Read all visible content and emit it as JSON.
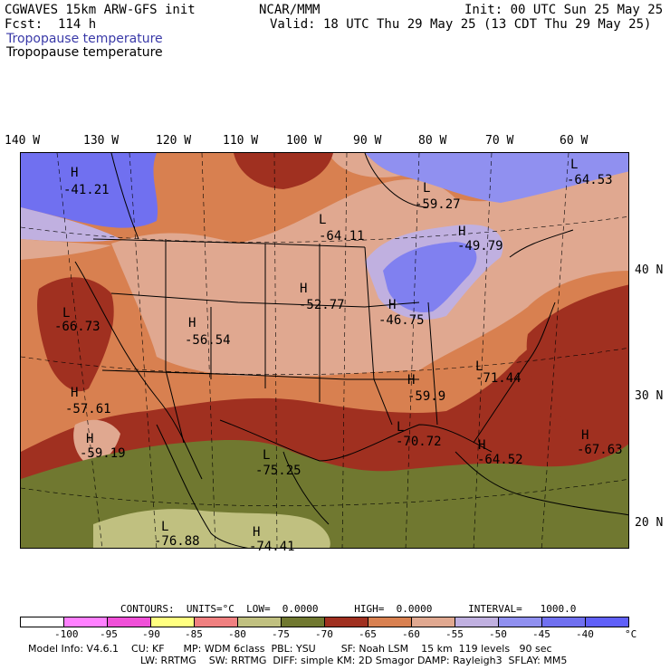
{
  "header": {
    "model_title": "CGWAVES 15km ARW-GFS init",
    "center": "NCAR/MMM",
    "init": "Init: 00 UTC Sun 25 May 25",
    "fcst": "Fcst:  114 h",
    "valid": "Valid: 18 UTC Thu 29 May 25 (13 CDT Thu 29 May 25)",
    "field_title_1": "Tropopause temperature",
    "field_title_2": "Tropopause temperature"
  },
  "colors": {
    "title_blue": "#3a3aa8",
    "bins": [
      "#ffffff",
      "#ff80ff",
      "#f050d8",
      "#ffff80",
      "#f08080",
      "#c0c080",
      "#707830",
      "#a03020",
      "#d88050",
      "#e0a890",
      "#c0b0e0",
      "#9090f0",
      "#7070f0",
      "#6060f8"
    ]
  },
  "map": {
    "lon_labels": [
      "140 W",
      "130 W",
      "120 W",
      "110 W",
      "100 W",
      "90 W",
      "80 W",
      "70 W",
      "60 W"
    ],
    "lat_labels": [
      "40 N",
      "30 N",
      "20 N"
    ],
    "extrema": [
      {
        "type": "H",
        "value": "-41.21"
      },
      {
        "type": "L",
        "value": "-59.27"
      },
      {
        "type": "L",
        "value": "-64.53"
      },
      {
        "type": "H",
        "value": "-49.79"
      },
      {
        "type": "L",
        "value": "-64.11"
      },
      {
        "type": "H",
        "value": "-52.77"
      },
      {
        "type": "H",
        "value": "-46.75"
      },
      {
        "type": "L",
        "value": "-66.73"
      },
      {
        "type": "H",
        "value": "-56.54"
      },
      {
        "type": "H",
        "value": "-57.61"
      },
      {
        "type": "L",
        "value": "-71.44"
      },
      {
        "type": "H",
        "value": "-59.9"
      },
      {
        "type": "H",
        "value": "-59.19"
      },
      {
        "type": "L",
        "value": "-70.72"
      },
      {
        "type": "H",
        "value": "-64.52"
      },
      {
        "type": "H",
        "value": "-67.63"
      },
      {
        "type": "L",
        "value": "-75.25"
      },
      {
        "type": "L",
        "value": "-76.88"
      },
      {
        "type": "H",
        "value": "-74.41"
      }
    ]
  },
  "footer": {
    "contours": "CONTOURS:  UNITS=°C  LOW=  0.0000      HIGH=  0.0000      INTERVAL=   1000.0",
    "legend_ticks": [
      "-100",
      "-95",
      "-90",
      "-85",
      "-80",
      "-75",
      "-70",
      "-65",
      "-60",
      "-55",
      "-50",
      "-45",
      "-40",
      "°C"
    ],
    "model_info_1": "Model Info: V4.6.1    CU: KF      MP: WDM 6class  PBL: YSU        SF: Noah LSM    15 km  119 levels   90 sec",
    "model_info_2": "LW: RRTMG    SW: RRTMG  DIFF: simple KM: 2D Smagor DAMP: Rayleigh3  SFLAY: MM5"
  }
}
